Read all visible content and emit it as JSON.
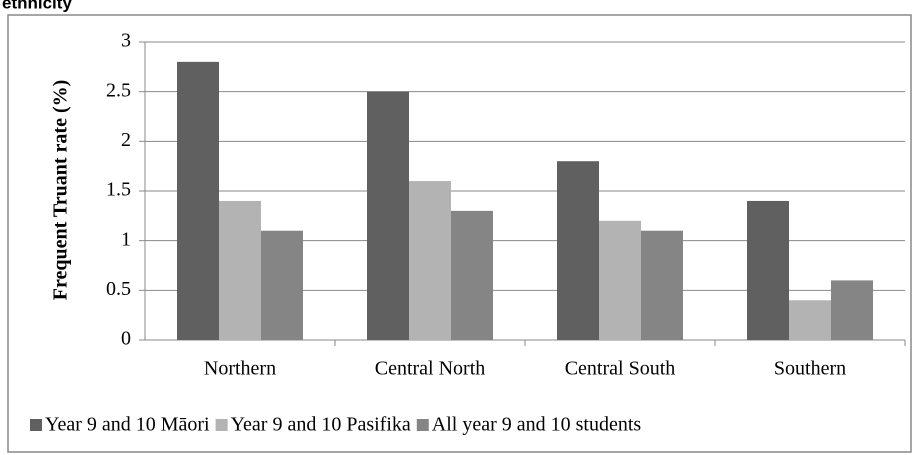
{
  "chart_data": {
    "type": "bar",
    "title": "ethnicity",
    "y_label": "Frequent Truant rate (%)",
    "categories": [
      "Northern",
      "Central North",
      "Central South",
      "Southern"
    ],
    "series": [
      {
        "name": "Year 9 and 10 Māori",
        "color": "#606060",
        "values": [
          2.8,
          2.5,
          1.8,
          1.4
        ]
      },
      {
        "name": "Year 9 and 10 Pasifika",
        "color": "#b3b3b3",
        "values": [
          1.4,
          1.6,
          1.2,
          0.4
        ]
      },
      {
        "name": "All year 9 and 10 students",
        "color": "#858585",
        "values": [
          1.1,
          1.3,
          1.1,
          0.6
        ]
      }
    ],
    "ylim": [
      0,
      3
    ],
    "yticks": [
      0,
      0.5,
      1,
      1.5,
      2,
      2.5,
      3
    ],
    "grid": true,
    "legend": "bottom"
  }
}
